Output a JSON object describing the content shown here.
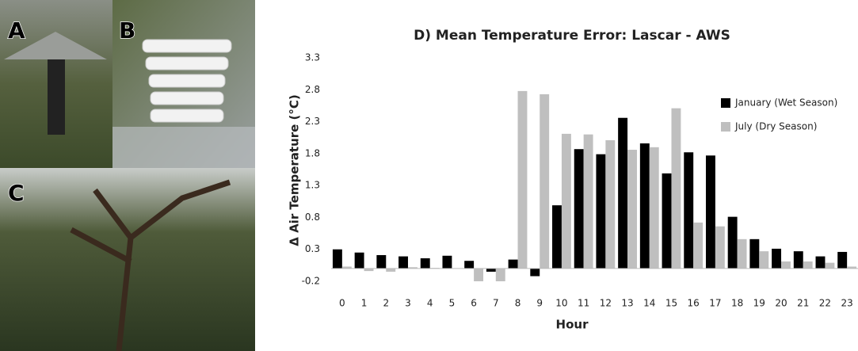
{
  "panels": [
    {
      "label": "A"
    },
    {
      "label": "B"
    },
    {
      "label": "C"
    }
  ],
  "chart_data": {
    "type": "bar",
    "title": "D) Mean Temperature Error: Lascar - AWS",
    "x_label": "Hour",
    "y_label": "Δ Air Temperature (°C)",
    "categories": [
      "0",
      "1",
      "2",
      "3",
      "4",
      "5",
      "6",
      "7",
      "8",
      "9",
      "10",
      "11",
      "12",
      "13",
      "14",
      "15",
      "16",
      "17",
      "18",
      "19",
      "20",
      "21",
      "22",
      "23"
    ],
    "series": [
      {
        "name": "January (Wet Season)",
        "color": "#000000",
        "values": [
          0.3,
          0.25,
          0.21,
          0.19,
          0.16,
          0.2,
          0.12,
          -0.05,
          0.14,
          -0.12,
          0.99,
          1.87,
          1.79,
          2.36,
          1.96,
          1.49,
          1.82,
          1.77,
          0.81,
          0.46,
          0.31,
          0.27,
          0.19,
          0.26
        ]
      },
      {
        "name": "July (Dry Season)",
        "color": "#bfbfbf",
        "values": [
          0.03,
          -0.04,
          -0.05,
          0.02,
          0.01,
          0.0,
          -0.2,
          -0.2,
          2.78,
          2.73,
          2.11,
          2.1,
          2.01,
          1.86,
          1.9,
          2.51,
          0.72,
          0.66,
          0.46,
          0.27,
          0.11,
          0.11,
          0.09,
          0.03
        ]
      }
    ],
    "ylim": [
      -0.2,
      3.3
    ],
    "yticks": [
      -0.2,
      0.3,
      0.8,
      1.3,
      1.8,
      2.3,
      2.8,
      3.3
    ],
    "grid": false,
    "legend": "right"
  }
}
